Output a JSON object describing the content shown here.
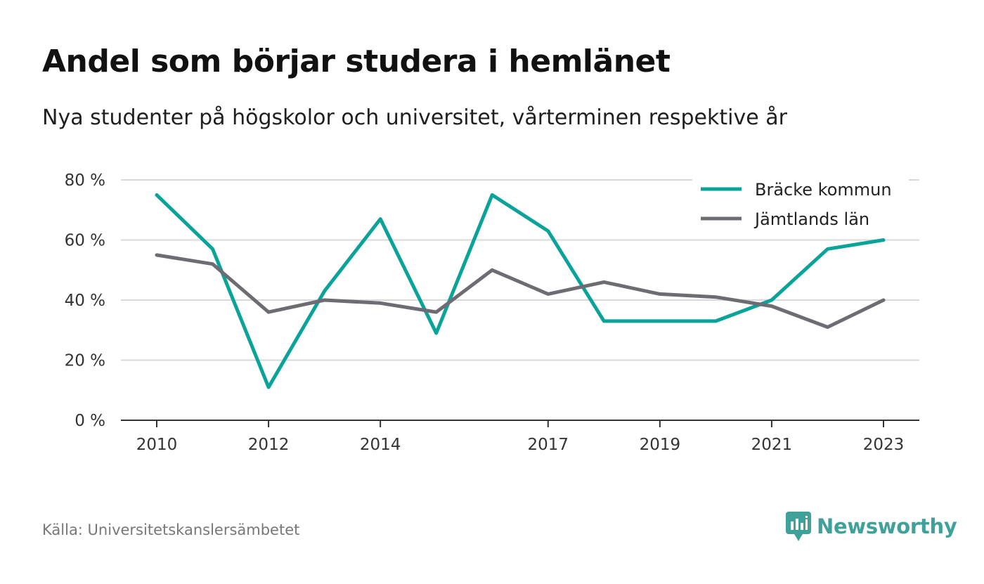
{
  "title": "Andel som börjar studera i hemlänet",
  "subtitle": "Nya studenter på högskolor och universitet, vårterminen respektive år",
  "source": "Källa: Universitetskanslersämbetet",
  "brand": "Newsworthy",
  "colors": {
    "accent": "#0aa399",
    "series2": "#6e6c72",
    "grid": "#d9d9d9",
    "axis": "#333333",
    "brand": "#3fa29a"
  },
  "chart_data": {
    "type": "line",
    "x": [
      2010,
      2011,
      2012,
      2013,
      2014,
      2015,
      2016,
      2017,
      2018,
      2019,
      2020,
      2021,
      2022,
      2023
    ],
    "xticks": [
      "2010",
      "2012",
      "2014",
      "2017",
      "2019",
      "2021",
      "2023"
    ],
    "yticks": [
      "0 %",
      "20 %",
      "40 %",
      "60 %",
      "80 %"
    ],
    "ylim": [
      0,
      80
    ],
    "grid": true,
    "legend_position": "top-right",
    "series": [
      {
        "name": "Bräcke kommun",
        "color": "#0aa399",
        "values": [
          75,
          57,
          11,
          43,
          67,
          29,
          75,
          63,
          33,
          33,
          33,
          40,
          57,
          60
        ]
      },
      {
        "name": "Jämtlands län",
        "color": "#6e6c72",
        "values": [
          55,
          52,
          36,
          40,
          39,
          36,
          50,
          42,
          46,
          42,
          41,
          38,
          31,
          40
        ]
      }
    ]
  }
}
